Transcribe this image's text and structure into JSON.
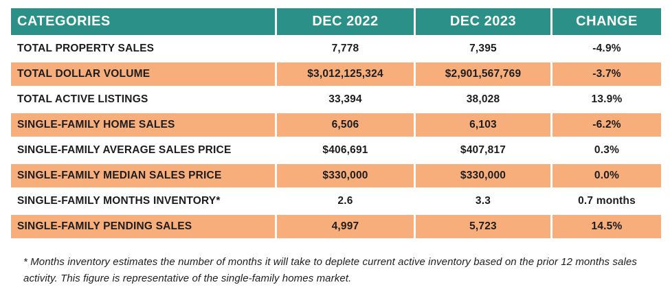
{
  "chart_data": {
    "type": "table",
    "title": "",
    "columns": [
      "CATEGORIES",
      "DEC 2022",
      "DEC 2023",
      "CHANGE"
    ],
    "rows": [
      {
        "category": "TOTAL PROPERTY SALES",
        "dec2022": "7,778",
        "dec2023": "7,395",
        "change": "-4.9%"
      },
      {
        "category": "TOTAL DOLLAR VOLUME",
        "dec2022": "$3,012,125,324",
        "dec2023": "$2,901,567,769",
        "change": "-3.7%"
      },
      {
        "category": "TOTAL ACTIVE LISTINGS",
        "dec2022": "33,394",
        "dec2023": "38,028",
        "change": "13.9%"
      },
      {
        "category": "SINGLE-FAMILY HOME SALES",
        "dec2022": "6,506",
        "dec2023": "6,103",
        "change": "-6.2%"
      },
      {
        "category": "SINGLE-FAMILY AVERAGE SALES PRICE",
        "dec2022": "$406,691",
        "dec2023": "$407,817",
        "change": "0.3%"
      },
      {
        "category": "SINGLE-FAMILY MEDIAN SALES PRICE",
        "dec2022": "$330,000",
        "dec2023": "$330,000",
        "change": "0.0%"
      },
      {
        "category": "SINGLE-FAMILY MONTHS INVENTORY*",
        "dec2022": "2.6",
        "dec2023": "3.3",
        "change": "0.7 months"
      },
      {
        "category": "SINGLE-FAMILY PENDING SALES",
        "dec2022": "4,997",
        "dec2023": "5,723",
        "change": "14.5%"
      }
    ],
    "colors": {
      "header_bg": "#2b9087",
      "header_text": "#ffffff",
      "alt_row_bg": "#f8ae7b",
      "body_text": "#1c1c1c"
    },
    "layout": {
      "alternating_rows": "white / orange, starting white",
      "value_alignment": "center",
      "category_alignment": "left"
    }
  },
  "table": {
    "headers": [
      "CATEGORIES",
      "DEC 2022",
      "DEC 2023",
      "CHANGE"
    ],
    "rows": [
      {
        "category": "TOTAL PROPERTY SALES",
        "dec2022": "7,778",
        "dec2023": "7,395",
        "change": "-4.9%"
      },
      {
        "category": "TOTAL DOLLAR VOLUME",
        "dec2022": "$3,012,125,324",
        "dec2023": "$2,901,567,769",
        "change": "-3.7%"
      },
      {
        "category": "TOTAL ACTIVE LISTINGS",
        "dec2022": "33,394",
        "dec2023": "38,028",
        "change": "13.9%"
      },
      {
        "category": "SINGLE-FAMILY HOME SALES",
        "dec2022": "6,506",
        "dec2023": "6,103",
        "change": "-6.2%"
      },
      {
        "category": "SINGLE-FAMILY AVERAGE SALES PRICE",
        "dec2022": "$406,691",
        "dec2023": "$407,817",
        "change": "0.3%"
      },
      {
        "category": "SINGLE-FAMILY MEDIAN SALES PRICE",
        "dec2022": "$330,000",
        "dec2023": "$330,000",
        "change": "0.0%"
      },
      {
        "category": "SINGLE-FAMILY MONTHS INVENTORY*",
        "dec2022": "2.6",
        "dec2023": "3.3",
        "change": "0.7 months"
      },
      {
        "category": "SINGLE-FAMILY PENDING SALES",
        "dec2022": "4,997",
        "dec2023": "5,723",
        "change": "14.5%"
      }
    ]
  },
  "footnote": "* Months inventory estimates the number of months it will take to deplete current active inventory based on the prior 12 months sales activity. This figure is representative of the single-family homes market."
}
